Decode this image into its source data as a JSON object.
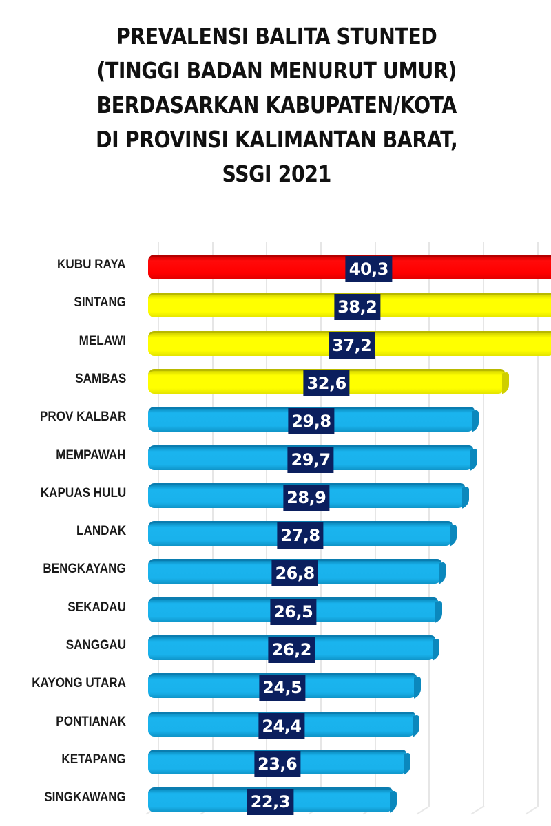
{
  "title_lines": [
    "PREVALENSI BALITA STUNTED",
    "(TINGGI BADAN MENURUT UMUR)",
    "BERDASARKAN KABUPATEN/KOTA",
    "DI PROVINSI KALIMANTAN BARAT,",
    "SSGI 2021"
  ],
  "colors": {
    "highest": "#ff0000",
    "above_province": "#ffff00",
    "province_and_below": "#1ab4ee",
    "label_box": "#0b1f5e"
  },
  "chart_data": {
    "type": "bar",
    "orientation": "horizontal",
    "title": "PREVALENSI BALITA STUNTED (TINGGI BADAN MENURUT UMUR) BERDASARKAN KABUPATEN/KOTA DI PROVINSI KALIMANTAN BARAT, SSGI 2021",
    "xlabel": "",
    "ylabel": "",
    "grid": true,
    "legend": "none",
    "xlim": [
      0,
      36.5
    ],
    "categories": [
      "KUBU RAYA",
      "SINTANG",
      "MELAWI",
      "SAMBAS",
      "PROV KALBAR",
      "MEMPAWAH",
      "KAPUAS HULU",
      "LANDAK",
      "BENGKAYANG",
      "SEKADAU",
      "SANGGAU",
      "KAYONG UTARA",
      "PONTIANAK",
      "KETAPANG",
      "SINGKAWANG"
    ],
    "values": [
      40.3,
      38.2,
      37.2,
      32.6,
      29.8,
      29.7,
      28.9,
      27.8,
      26.8,
      26.5,
      26.2,
      24.5,
      24.4,
      23.6,
      22.3
    ],
    "labels": [
      "40,3",
      "38,2",
      "37,2",
      "32,6",
      "29,8",
      "29,7",
      "28,9",
      "27,8",
      "26,8",
      "26,5",
      "26,2",
      "24,5",
      "24,4",
      "23,6",
      "22,3"
    ],
    "bar_colors": [
      "red",
      "yellow",
      "yellow",
      "yellow",
      "blue",
      "blue",
      "blue",
      "blue",
      "blue",
      "blue",
      "blue",
      "blue",
      "blue",
      "blue",
      "blue"
    ]
  }
}
